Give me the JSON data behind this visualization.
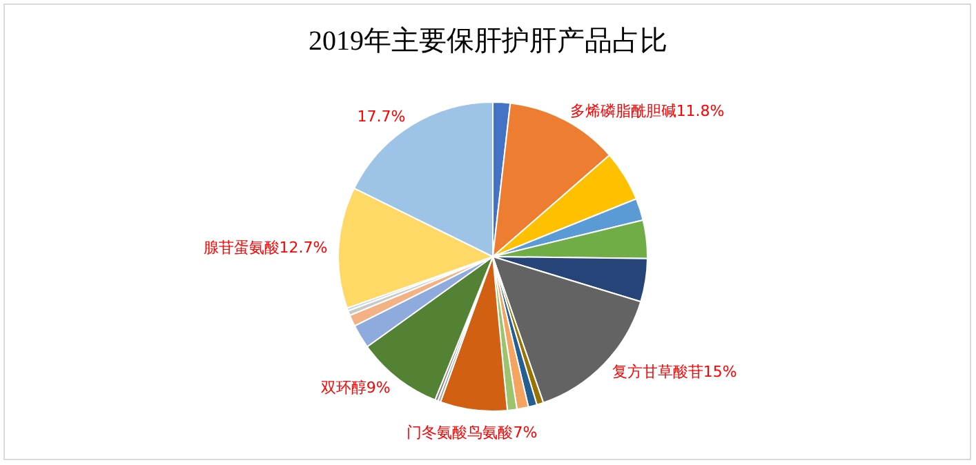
{
  "chart_data": {
    "type": "pie",
    "title": "2019年主要保肝护肝产品占比",
    "categories": [
      null,
      "多烯磷脂酰胆碱",
      null,
      null,
      null,
      null,
      "复方甘草酸苷",
      null,
      null,
      null,
      null,
      "门冬氨酸鸟氨酸",
      null,
      null,
      "双环醇",
      null,
      null,
      null,
      null,
      "腺苷蛋氨酸",
      null
    ],
    "values": [
      1.8,
      11.8,
      5.3,
      2.3,
      4,
      4.5,
      15,
      0.7,
      0.9,
      1.2,
      1,
      7,
      0.3,
      0.3,
      9,
      2.5,
      1.2,
      0.5,
      0.3,
      12.7,
      17.7
    ],
    "value_labels": [
      null,
      "11.8%",
      null,
      null,
      null,
      null,
      "15%",
      null,
      null,
      null,
      null,
      "7%",
      null,
      null,
      "9%",
      null,
      null,
      null,
      null,
      "12.7%",
      "17.7%"
    ],
    "colors": [
      "#4472c4",
      "#ed7d31",
      "#ffc000",
      "#5b9bd5",
      "#70ad47",
      "#264478",
      "#636363",
      "#997300",
      "#255e91",
      "#f4a460",
      "#9dc36e",
      "#d26012",
      "#a5a5a5",
      "#7f7f7f",
      "#548235",
      "#8faadc",
      "#f4b183",
      "#c9c9c9",
      "#bdd7ee",
      "#ffd966",
      "#9dc3e6"
    ]
  }
}
